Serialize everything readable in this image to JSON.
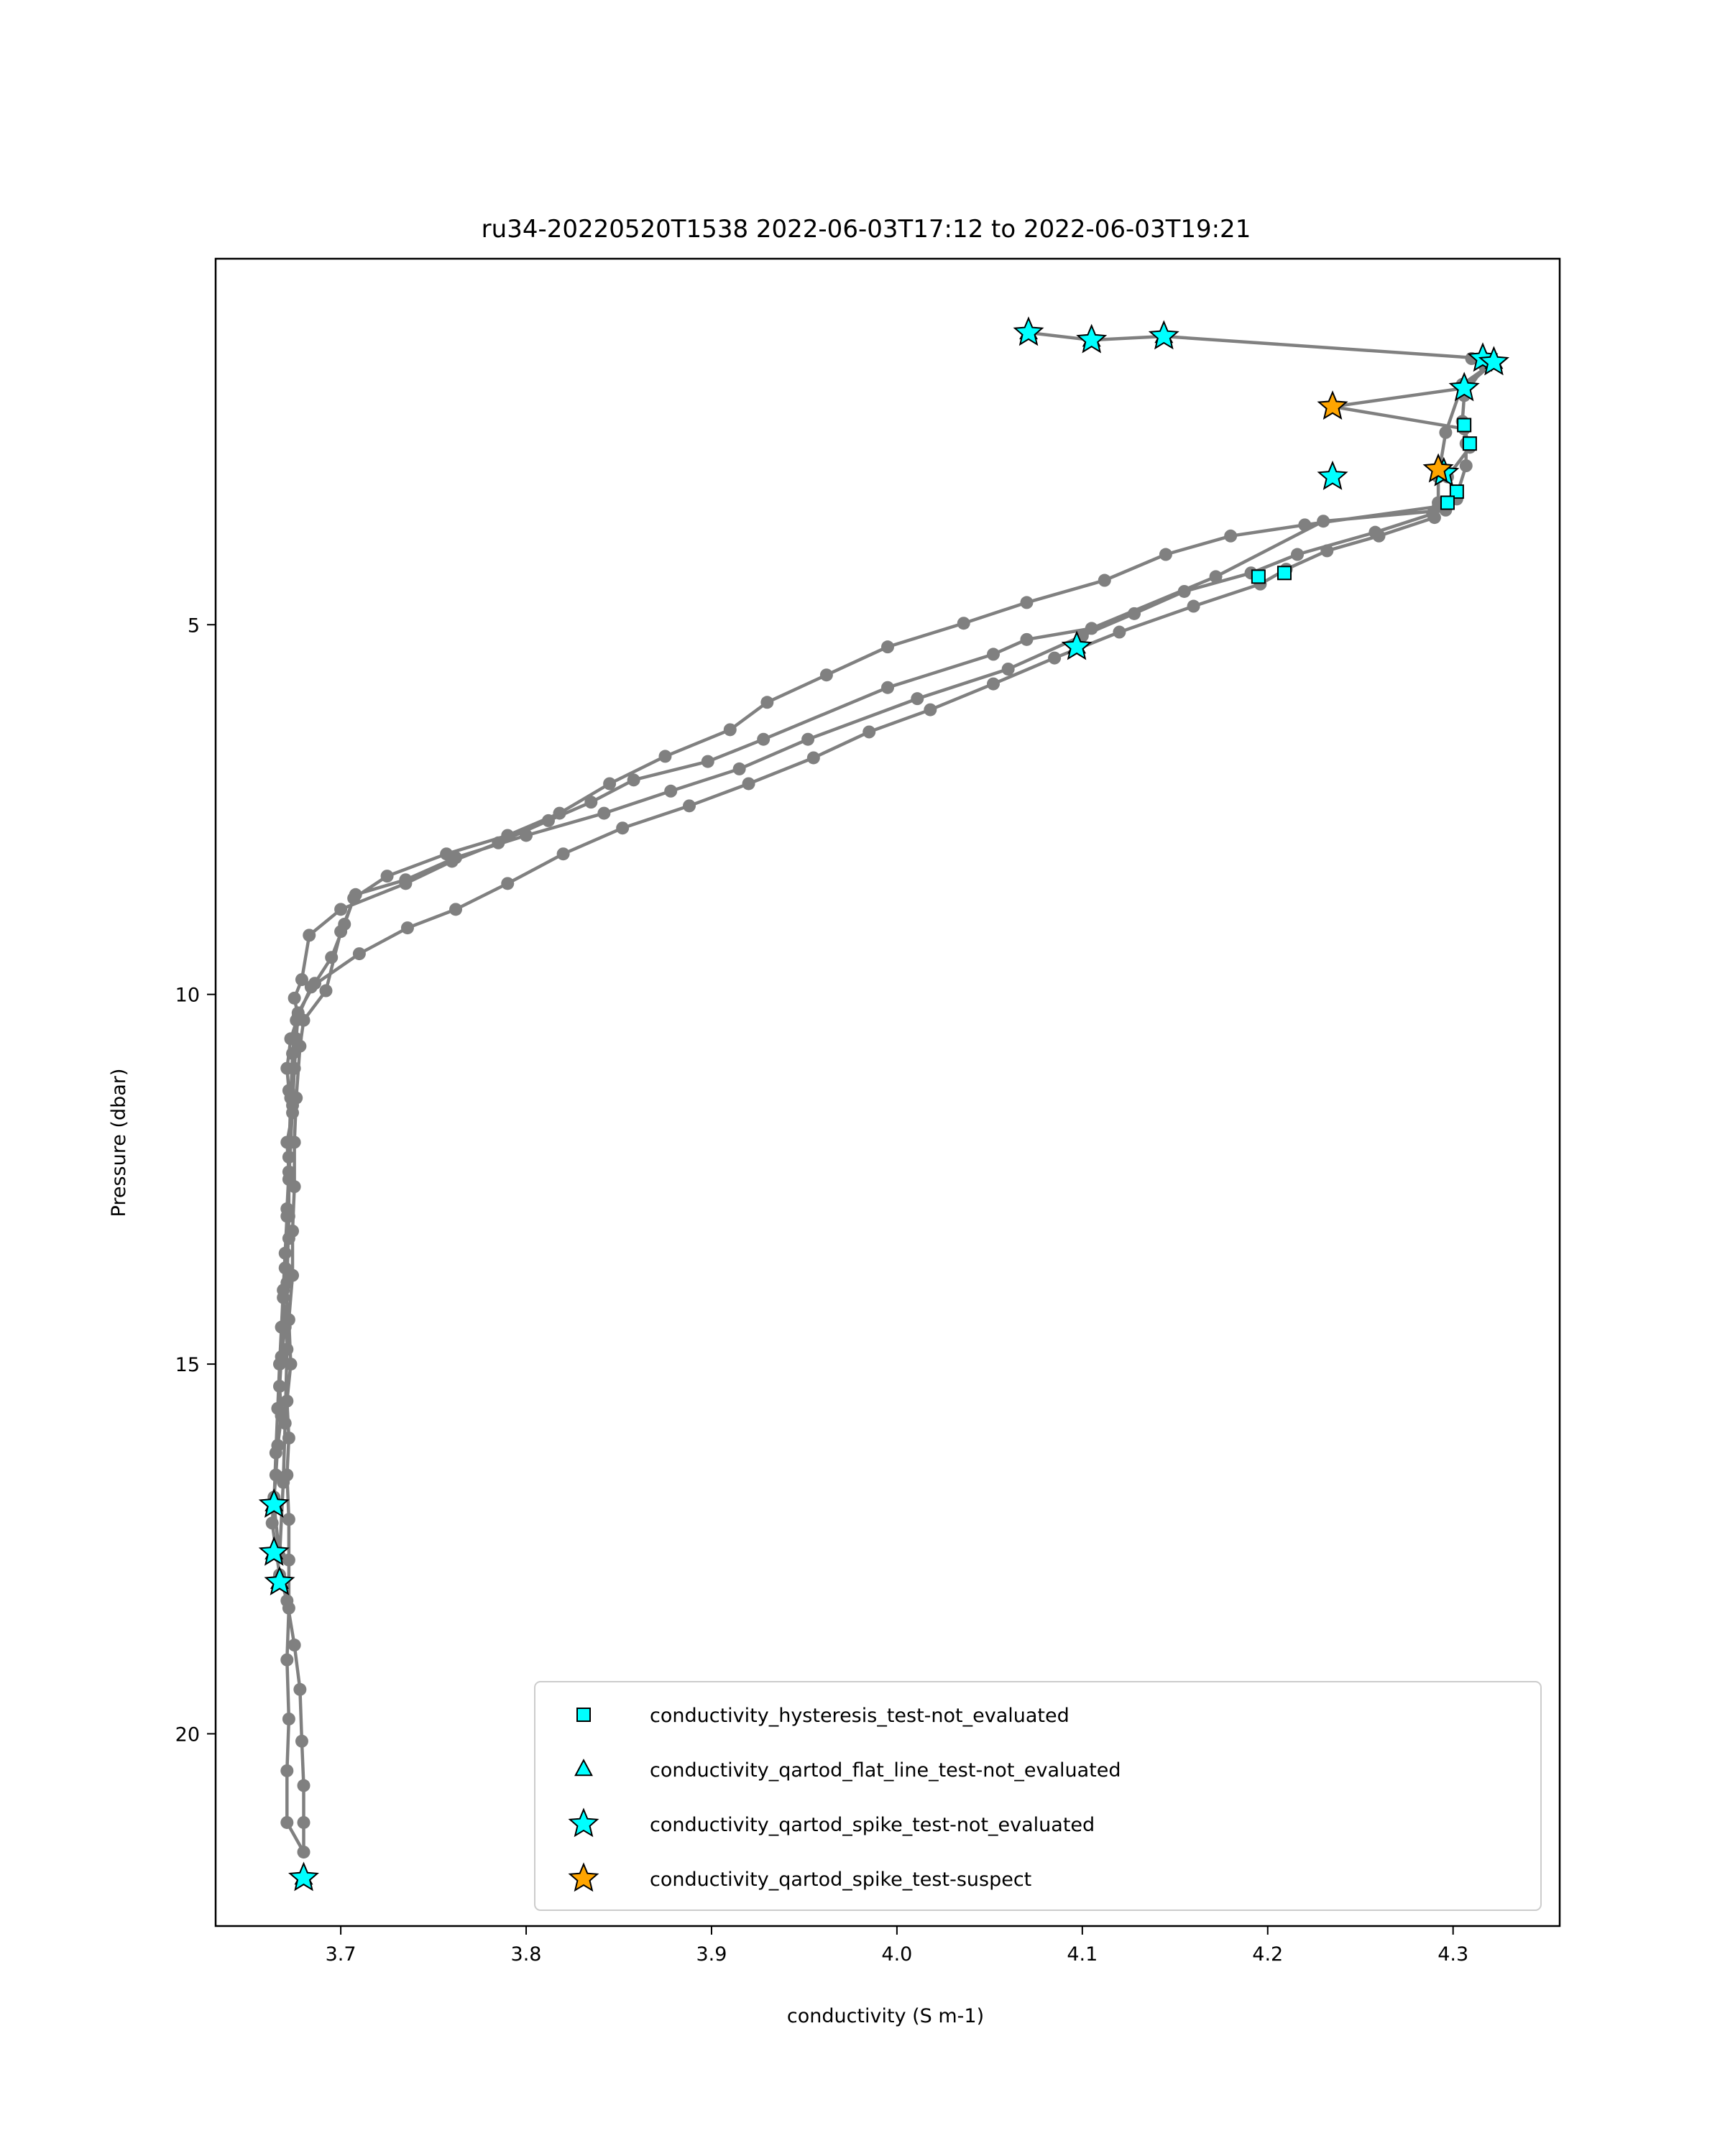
{
  "chart_data": {
    "type": "scatter",
    "title": "ru34-20220520T1538 2022-06-03T17:12 to 2022-06-03T19:21",
    "xlabel": "conductivity (S m-1)",
    "ylabel": "Pressure (dbar)",
    "xlim": [
      3.6325,
      4.3575
    ],
    "ylim": [
      22.6,
      0.05
    ],
    "y_inverted": true,
    "grid": false,
    "legend_position": "lower-right",
    "x_ticks": [
      3.7,
      3.8,
      3.9,
      4.0,
      4.1,
      4.2,
      4.3
    ],
    "x_tick_labels": [
      "3.7",
      "3.8",
      "3.9",
      "4.0",
      "4.1",
      "4.2",
      "4.3"
    ],
    "y_ticks": [
      5,
      10,
      15,
      20
    ],
    "y_tick_labels": [
      "5",
      "10",
      "15",
      "20"
    ],
    "profile_color": "#808080",
    "profile": {
      "name": "conductivity",
      "points": [
        [
          4.071,
          1.05
        ],
        [
          4.105,
          1.15
        ],
        [
          4.144,
          1.1
        ],
        [
          4.317,
          1.4
        ],
        [
          4.322,
          1.45
        ],
        [
          4.306,
          1.8
        ],
        [
          4.235,
          2.05
        ],
        [
          4.306,
          2.35
        ],
        [
          4.309,
          2.6
        ],
        [
          4.297,
          3.0
        ],
        [
          4.302,
          3.25
        ],
        [
          4.296,
          3.45
        ],
        [
          4.23,
          3.6
        ],
        [
          4.172,
          4.35
        ],
        [
          4.105,
          5.05
        ],
        [
          4.07,
          5.2
        ],
        [
          4.052,
          5.4
        ],
        [
          3.995,
          5.85
        ],
        [
          3.928,
          6.55
        ],
        [
          3.898,
          6.85
        ],
        [
          3.858,
          7.1
        ],
        [
          3.835,
          7.4
        ],
        [
          3.812,
          7.65
        ],
        [
          3.785,
          7.95
        ],
        [
          3.76,
          8.2
        ],
        [
          3.735,
          8.5
        ],
        [
          3.7,
          8.85
        ],
        [
          3.683,
          9.2
        ],
        [
          3.679,
          9.8
        ],
        [
          3.675,
          10.05
        ],
        [
          3.677,
          10.3
        ],
        [
          3.673,
          10.6
        ],
        [
          3.671,
          11.0
        ],
        [
          3.672,
          11.3
        ],
        [
          3.674,
          11.6
        ],
        [
          3.671,
          12.0
        ],
        [
          3.672,
          12.4
        ],
        [
          3.671,
          12.9
        ],
        [
          3.672,
          13.3
        ],
        [
          3.67,
          13.7
        ],
        [
          3.669,
          14.1
        ],
        [
          3.67,
          14.5
        ],
        [
          3.668,
          14.9
        ],
        [
          3.667,
          15.3
        ],
        [
          3.668,
          15.7
        ],
        [
          3.666,
          16.1
        ],
        [
          3.665,
          16.5
        ],
        [
          3.664,
          16.8
        ],
        [
          3.663,
          17.15
        ],
        [
          3.665,
          17.5
        ],
        [
          3.667,
          17.85
        ],
        [
          3.671,
          18.2
        ],
        [
          3.675,
          18.8
        ],
        [
          3.678,
          19.4
        ],
        [
          3.679,
          20.1
        ],
        [
          3.68,
          20.7
        ],
        [
          3.68,
          21.2
        ],
        [
          3.68,
          21.6
        ],
        [
          3.671,
          21.2
        ],
        [
          3.671,
          20.5
        ],
        [
          3.672,
          19.8
        ],
        [
          3.671,
          19.0
        ],
        [
          3.672,
          18.3
        ],
        [
          3.672,
          17.65
        ],
        [
          3.672,
          17.1
        ],
        [
          3.671,
          16.5
        ],
        [
          3.672,
          16.0
        ],
        [
          3.671,
          15.5
        ],
        [
          3.673,
          15.0
        ],
        [
          3.672,
          14.4
        ],
        [
          3.674,
          13.8
        ],
        [
          3.674,
          13.2
        ],
        [
          3.675,
          12.6
        ],
        [
          3.675,
          12.0
        ],
        [
          3.676,
          11.4
        ],
        [
          3.678,
          10.7
        ],
        [
          3.68,
          10.35
        ],
        [
          3.692,
          9.95
        ],
        [
          3.7,
          9.15
        ],
        [
          3.708,
          8.65
        ],
        [
          3.735,
          8.45
        ],
        [
          3.762,
          8.15
        ],
        [
          3.8,
          7.85
        ],
        [
          3.842,
          7.55
        ],
        [
          3.878,
          7.25
        ],
        [
          3.915,
          6.95
        ],
        [
          3.952,
          6.55
        ],
        [
          4.011,
          6.0
        ],
        [
          4.06,
          5.6
        ],
        [
          4.1,
          5.15
        ],
        [
          4.128,
          4.85
        ],
        [
          4.155,
          4.55
        ],
        [
          4.191,
          4.3
        ],
        [
          4.216,
          4.05
        ],
        [
          4.258,
          3.75
        ],
        [
          4.289,
          3.5
        ],
        [
          4.302,
          3.25
        ],
        [
          4.307,
          2.85
        ],
        [
          4.307,
          2.55
        ],
        [
          4.305,
          2.25
        ],
        [
          4.306,
          1.9
        ],
        [
          4.317,
          1.5
        ],
        [
          4.31,
          1.4
        ],
        [
          4.322,
          1.45
        ],
        [
          4.305,
          1.75
        ],
        [
          4.296,
          2.4
        ],
        [
          4.292,
          3.0
        ],
        [
          4.292,
          3.4
        ],
        [
          4.22,
          3.65
        ],
        [
          4.18,
          3.8
        ],
        [
          4.145,
          4.05
        ],
        [
          4.112,
          4.4
        ],
        [
          4.07,
          4.7
        ],
        [
          4.036,
          4.98
        ],
        [
          3.995,
          5.3
        ],
        [
          3.962,
          5.68
        ],
        [
          3.93,
          6.05
        ],
        [
          3.91,
          6.42
        ],
        [
          3.875,
          6.78
        ],
        [
          3.845,
          7.15
        ],
        [
          3.818,
          7.55
        ],
        [
          3.79,
          7.85
        ],
        [
          3.757,
          8.1
        ],
        [
          3.725,
          8.4
        ],
        [
          3.707,
          8.7
        ],
        [
          3.702,
          9.05
        ],
        [
          3.695,
          9.5
        ],
        [
          3.686,
          9.85
        ],
        [
          3.677,
          10.25
        ],
        [
          3.676,
          10.6
        ],
        [
          3.675,
          11.0
        ],
        [
          3.674,
          11.5
        ],
        [
          3.673,
          12.0
        ],
        [
          3.672,
          12.5
        ],
        [
          3.671,
          13.0
        ],
        [
          3.67,
          13.5
        ],
        [
          3.669,
          14.0
        ],
        [
          3.668,
          14.5
        ],
        [
          3.667,
          15.0
        ],
        [
          3.666,
          15.6
        ],
        [
          3.665,
          16.2
        ],
        [
          3.664,
          16.9
        ],
        [
          3.667,
          17.6
        ],
        [
          3.669,
          16.6
        ],
        [
          3.67,
          15.8
        ],
        [
          3.671,
          14.8
        ],
        [
          3.671,
          13.9
        ],
        [
          3.672,
          13.0
        ],
        [
          3.672,
          12.2
        ],
        [
          3.673,
          11.4
        ],
        [
          3.674,
          10.8
        ],
        [
          3.676,
          10.35
        ],
        [
          3.684,
          9.9
        ],
        [
          3.71,
          9.45
        ],
        [
          3.736,
          9.1
        ],
        [
          3.762,
          8.85
        ],
        [
          3.79,
          8.5
        ],
        [
          3.82,
          8.1
        ],
        [
          3.852,
          7.75
        ],
        [
          3.888,
          7.45
        ],
        [
          3.92,
          7.15
        ],
        [
          3.955,
          6.8
        ],
        [
          3.985,
          6.45
        ],
        [
          4.018,
          6.15
        ],
        [
          4.052,
          5.8
        ],
        [
          4.085,
          5.45
        ],
        [
          4.12,
          5.1
        ],
        [
          4.16,
          4.75
        ],
        [
          4.196,
          4.45
        ],
        [
          4.21,
          4.25
        ],
        [
          4.232,
          4.0
        ],
        [
          4.26,
          3.8
        ],
        [
          4.29,
          3.55
        ],
        [
          4.292,
          3.35
        ],
        [
          4.302,
          3.3
        ]
      ]
    },
    "series": [
      {
        "name": "conductivity_hysteresis_test-not_evaluated",
        "marker": "square",
        "color": "#00FFFF",
        "points": [
          [
            4.306,
            2.3
          ],
          [
            4.309,
            2.55
          ],
          [
            4.302,
            3.2
          ],
          [
            4.297,
            3.35
          ],
          [
            4.195,
            4.35
          ],
          [
            4.209,
            4.3
          ]
        ]
      },
      {
        "name": "conductivity_qartod_flat_line_test-not_evaluated",
        "marker": "triangle",
        "color": "#00FFFF",
        "points": [
          [
            4.071,
            1.05
          ],
          [
            4.105,
            1.15
          ],
          [
            4.144,
            1.1
          ],
          [
            4.097,
            5.3
          ],
          [
            4.317,
            1.4
          ],
          [
            4.322,
            1.45
          ],
          [
            3.664,
            16.9
          ],
          [
            3.664,
            17.55
          ],
          [
            3.667,
            17.95
          ],
          [
            3.68,
            21.95
          ]
        ]
      },
      {
        "name": "conductivity_qartod_spike_test-not_evaluated",
        "marker": "star",
        "color": "#00FFFF",
        "points": [
          [
            4.071,
            1.05
          ],
          [
            4.105,
            1.15
          ],
          [
            4.144,
            1.1
          ],
          [
            4.316,
            1.4
          ],
          [
            4.322,
            1.45
          ],
          [
            4.306,
            1.8
          ],
          [
            4.235,
            3.0
          ],
          [
            4.097,
            5.3
          ],
          [
            4.295,
            2.95
          ],
          [
            3.664,
            16.9
          ],
          [
            3.664,
            17.55
          ],
          [
            3.667,
            17.95
          ],
          [
            3.68,
            21.95
          ]
        ]
      },
      {
        "name": "conductivity_qartod_spike_test-suspect",
        "marker": "star",
        "color": "#FFA500",
        "points": [
          [
            4.235,
            2.05
          ],
          [
            4.292,
            2.9
          ]
        ]
      }
    ]
  }
}
